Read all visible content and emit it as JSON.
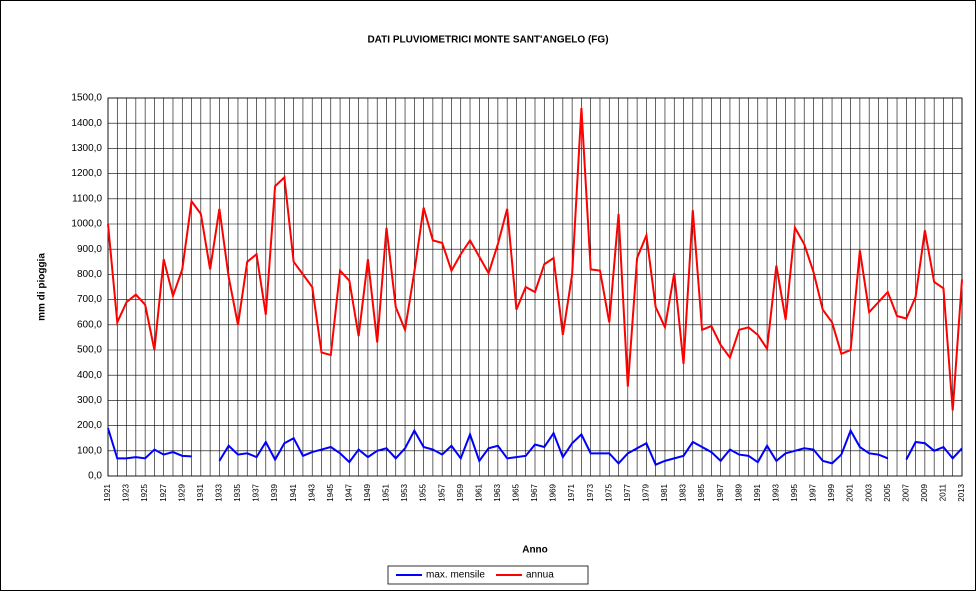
{
  "chart_data": {
    "type": "line",
    "title": "DATI PLUVIOMETRICI  MONTE  SANT'ANGELO  (FG)",
    "xlabel": "Anno",
    "ylabel": "mm di pioggia",
    "categories": [
      "1921",
      null,
      "1923",
      null,
      "1925",
      null,
      "1927",
      null,
      "1929",
      null,
      "1931",
      null,
      "1933",
      null,
      "1935",
      null,
      "1937",
      null,
      "1939",
      null,
      "1941",
      null,
      "1943",
      null,
      "1945",
      null,
      "1947",
      null,
      "1949",
      null,
      "1951",
      null,
      "1953",
      null,
      "1955",
      null,
      "1957",
      null,
      "1959",
      null,
      "1961",
      null,
      "1963",
      null,
      "1965",
      null,
      "1967",
      null,
      "1969",
      null,
      "1971",
      null,
      "1973",
      null,
      "1975",
      null,
      "1977",
      null,
      "1979",
      null,
      "1981",
      null,
      "1983",
      null,
      "1985",
      null,
      "1987",
      null,
      "1989",
      null,
      "1991",
      null,
      "1993",
      null,
      "1995",
      null,
      "1997",
      null,
      "1999",
      null,
      "2001",
      null,
      "2003",
      null,
      "2005",
      null,
      "2007",
      null,
      "2009",
      null,
      "2011",
      null,
      "2013"
    ],
    "series": [
      {
        "name": "max. mensile",
        "color": "#0000ff",
        "values": [
          190,
          70,
          70,
          75,
          70,
          105,
          85,
          95,
          80,
          78,
          null,
          null,
          60,
          120,
          85,
          90,
          75,
          135,
          65,
          130,
          150,
          80,
          95,
          105,
          115,
          90,
          55,
          105,
          75,
          100,
          110,
          70,
          110,
          180,
          115,
          105,
          85,
          120,
          70,
          165,
          60,
          110,
          120,
          70,
          75,
          80,
          125,
          115,
          170,
          75,
          130,
          165,
          90,
          90,
          90,
          50,
          90,
          110,
          130,
          45,
          60,
          70,
          80,
          135,
          115,
          95,
          60,
          105,
          85,
          80,
          55,
          120,
          60,
          90,
          100,
          110,
          105,
          60,
          50,
          85,
          180,
          115,
          90,
          85,
          70,
          null,
          65,
          135,
          130,
          100,
          115,
          70,
          110
        ]
      },
      {
        "name": "annua",
        "color": "#ff0000",
        "values": [
          1000,
          610,
          690,
          720,
          680,
          500,
          860,
          715,
          820,
          1090,
          1040,
          820,
          1060,
          790,
          600,
          850,
          880,
          640,
          1150,
          1185,
          850,
          800,
          750,
          490,
          480,
          815,
          775,
          555,
          860,
          530,
          985,
          670,
          580,
          810,
          1065,
          935,
          925,
          815,
          880,
          935,
          870,
          805,
          920,
          1060,
          660,
          750,
          730,
          840,
          865,
          560,
          800,
          1460,
          820,
          815,
          610,
          1040,
          355,
          865,
          955,
          670,
          590,
          805,
          445,
          1055,
          580,
          595,
          520,
          470,
          580,
          590,
          560,
          505,
          835,
          620,
          985,
          920,
          810,
          660,
          610,
          485,
          500,
          895,
          650,
          690,
          730,
          635,
          625,
          710,
          975,
          770,
          745,
          260,
          780
        ]
      }
    ],
    "ylim": [
      0,
      1500
    ],
    "yticks": [
      {
        "value": 0,
        "label": "0,0"
      },
      {
        "value": 100,
        "label": "100,0"
      },
      {
        "value": 200,
        "label": "200,0"
      },
      {
        "value": 300,
        "label": "300,0"
      },
      {
        "value": 400,
        "label": "400,0"
      },
      {
        "value": 500,
        "label": "500,0"
      },
      {
        "value": 600,
        "label": "600,0"
      },
      {
        "value": 700,
        "label": "700,0"
      },
      {
        "value": 800,
        "label": "800,0"
      },
      {
        "value": 900,
        "label": "900,0"
      },
      {
        "value": 1000,
        "label": "1000,0"
      },
      {
        "value": 1100,
        "label": "1100,0"
      },
      {
        "value": 1200,
        "label": "1200,0"
      },
      {
        "value": 1300,
        "label": "1300,0"
      },
      {
        "value": 1400,
        "label": "1400,0"
      },
      {
        "value": 1500,
        "label": "1500,0"
      }
    ],
    "grid": true,
    "legend": "bottom"
  }
}
